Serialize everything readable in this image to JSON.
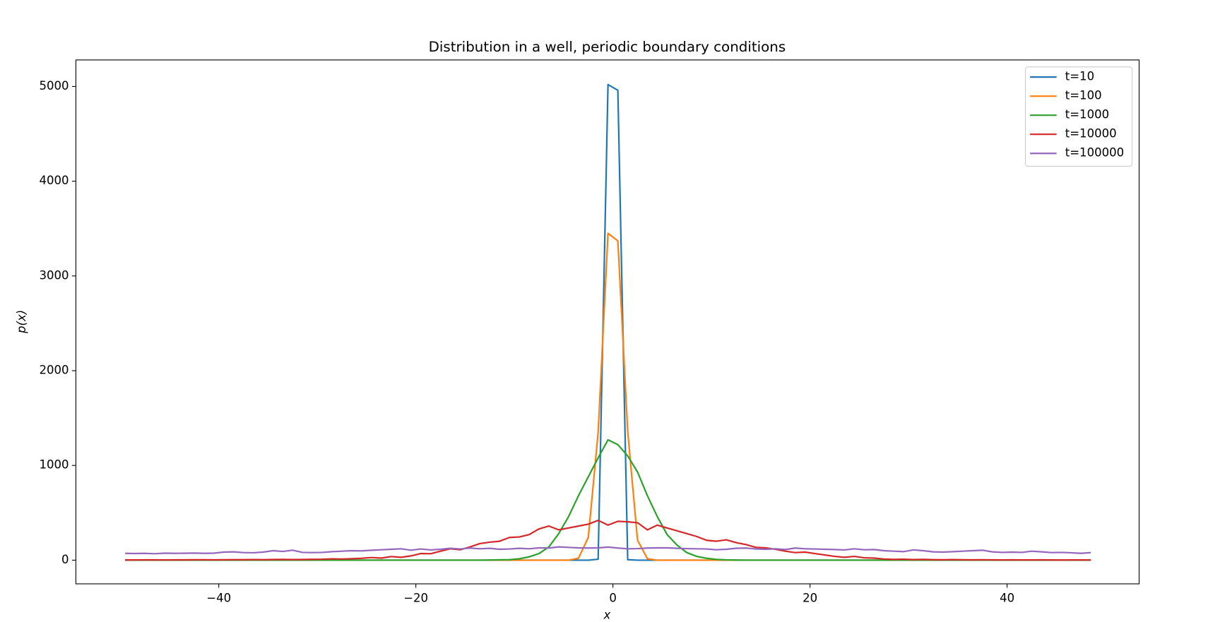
{
  "chart_data": {
    "type": "line",
    "title": "Distribution in a well, periodic boundary conditions",
    "x_label": "x",
    "y_label": "p(x)",
    "xlim": [
      -54.5,
      53.4
    ],
    "ylim": [
      -250,
      5280
    ],
    "xticks": [
      {
        "value": -40,
        "label": "−40"
      },
      {
        "value": -20,
        "label": "−20"
      },
      0,
      20,
      40
    ],
    "yticks": [
      0,
      1000,
      2000,
      3000,
      4000,
      5000
    ],
    "legend": "upper right",
    "grid": false,
    "x": [
      -49.5,
      -48.5,
      -47.5,
      -46.5,
      -45.5,
      -44.5,
      -43.5,
      -42.5,
      -41.5,
      -40.5,
      -39.5,
      -38.5,
      -37.5,
      -36.5,
      -35.5,
      -34.5,
      -33.5,
      -32.5,
      -31.5,
      -30.5,
      -29.5,
      -28.5,
      -27.5,
      -26.5,
      -25.5,
      -24.5,
      -23.5,
      -22.5,
      -21.5,
      -20.5,
      -19.5,
      -18.5,
      -17.5,
      -16.5,
      -15.5,
      -14.5,
      -13.5,
      -12.5,
      -11.5,
      -10.5,
      -9.5,
      -8.5,
      -7.5,
      -6.5,
      -5.5,
      -4.5,
      -3.5,
      -2.5,
      -1.5,
      -0.5,
      0.5,
      1.5,
      2.5,
      3.5,
      4.5,
      5.5,
      6.5,
      7.5,
      8.5,
      9.5,
      10.5,
      11.5,
      12.5,
      13.5,
      14.5,
      15.5,
      16.5,
      17.5,
      18.5,
      19.5,
      20.5,
      21.5,
      22.5,
      23.5,
      24.5,
      25.5,
      26.5,
      27.5,
      28.5,
      29.5,
      30.5,
      31.5,
      32.5,
      33.5,
      34.5,
      35.5,
      36.5,
      37.5,
      38.5,
      39.5,
      40.5,
      41.5,
      42.5,
      43.5,
      44.5,
      45.5,
      46.5,
      47.5,
      48.5
    ],
    "series": [
      {
        "name": "t=10",
        "color": "#1f77b4",
        "values": [
          0,
          0,
          0,
          0,
          0,
          0,
          0,
          0,
          0,
          0,
          0,
          0,
          0,
          0,
          0,
          0,
          0,
          0,
          0,
          0,
          0,
          0,
          0,
          0,
          0,
          0,
          0,
          0,
          0,
          0,
          0,
          0,
          0,
          0,
          0,
          0,
          0,
          0,
          0,
          0,
          0,
          0,
          0,
          0,
          0,
          0,
          0,
          0,
          10,
          5020,
          4960,
          5,
          0,
          0,
          0,
          0,
          0,
          0,
          0,
          0,
          0,
          0,
          0,
          0,
          0,
          0,
          0,
          0,
          0,
          0,
          0,
          0,
          0,
          0,
          0,
          0,
          0,
          0,
          0,
          0,
          0,
          0,
          0,
          0,
          0,
          0,
          0,
          0,
          0,
          0,
          0,
          0,
          0,
          0,
          0,
          0,
          0,
          0,
          0
        ]
      },
      {
        "name": "t=100",
        "color": "#ff7f0e",
        "values": [
          0,
          0,
          0,
          0,
          0,
          0,
          0,
          0,
          0,
          0,
          0,
          0,
          0,
          0,
          0,
          0,
          0,
          0,
          0,
          0,
          0,
          0,
          0,
          0,
          0,
          0,
          0,
          0,
          0,
          0,
          0,
          0,
          0,
          0,
          0,
          0,
          0,
          0,
          0,
          0,
          0,
          0,
          0,
          0,
          0,
          0,
          20,
          240,
          1350,
          3450,
          3370,
          1360,
          210,
          15,
          0,
          0,
          0,
          0,
          0,
          0,
          0,
          0,
          0,
          0,
          0,
          0,
          0,
          0,
          0,
          0,
          0,
          0,
          0,
          0,
          0,
          0,
          0,
          0,
          0,
          0,
          0,
          0,
          0,
          0,
          0,
          0,
          0,
          0,
          0,
          0,
          0,
          0,
          0,
          0,
          0,
          0,
          0,
          0,
          0
        ]
      },
      {
        "name": "t=1000",
        "color": "#2ca02c",
        "values": [
          0,
          0,
          0,
          0,
          0,
          0,
          0,
          0,
          0,
          0,
          0,
          0,
          0,
          0,
          0,
          0,
          0,
          0,
          0,
          0,
          0,
          0,
          0,
          0,
          0,
          0,
          0,
          0,
          0,
          0,
          0,
          0,
          0,
          0,
          0,
          0,
          0,
          1,
          3,
          5,
          15,
          35,
          70,
          140,
          280,
          460,
          680,
          880,
          1080,
          1270,
          1220,
          1100,
          930,
          680,
          460,
          270,
          160,
          80,
          40,
          20,
          8,
          3,
          1,
          0,
          0,
          0,
          0,
          0,
          0,
          0,
          0,
          0,
          0,
          0,
          0,
          0,
          0,
          0,
          0,
          0,
          0,
          0,
          0,
          0,
          0,
          0,
          0,
          0,
          0,
          0,
          0,
          0,
          0,
          0,
          0,
          0,
          0,
          0,
          0
        ]
      },
      {
        "name": "t=10000",
        "color": "#d62728",
        "values": [
          2,
          2,
          3,
          3,
          2,
          3,
          3,
          4,
          4,
          3,
          4,
          5,
          5,
          6,
          5,
          7,
          8,
          6,
          7,
          9,
          10,
          14,
          12,
          15,
          20,
          28,
          22,
          38,
          30,
          45,
          70,
          68,
          95,
          120,
          110,
          140,
          175,
          190,
          200,
          240,
          245,
          270,
          330,
          360,
          320,
          340,
          360,
          380,
          420,
          370,
          410,
          405,
          395,
          320,
          370,
          340,
          310,
          280,
          250,
          210,
          200,
          215,
          185,
          165,
          135,
          130,
          115,
          95,
          80,
          85,
          70,
          55,
          40,
          30,
          40,
          25,
          22,
          12,
          8,
          10,
          6,
          8,
          5,
          4,
          6,
          4,
          3,
          4,
          3,
          2,
          3,
          2,
          2,
          3,
          2,
          1,
          2,
          2,
          1
        ]
      },
      {
        "name": "t=100000",
        "color": "#9467bd",
        "values": [
          72,
          70,
          72,
          68,
          74,
          72,
          73,
          75,
          72,
          74,
          85,
          88,
          80,
          78,
          85,
          100,
          92,
          105,
          82,
          80,
          82,
          90,
          95,
          100,
          98,
          105,
          110,
          115,
          120,
          105,
          118,
          108,
          115,
          125,
          118,
          128,
          120,
          125,
          115,
          118,
          125,
          120,
          130,
          128,
          140,
          135,
          130,
          128,
          130,
          138,
          128,
          120,
          122,
          128,
          130,
          130,
          125,
          122,
          120,
          118,
          110,
          115,
          125,
          128,
          118,
          115,
          120,
          112,
          128,
          120,
          118,
          115,
          112,
          108,
          120,
          110,
          112,
          100,
          95,
          90,
          108,
          100,
          88,
          85,
          90,
          95,
          100,
          105,
          88,
          82,
          85,
          82,
          95,
          88,
          80,
          82,
          78,
          72,
          80
        ]
      }
    ]
  }
}
